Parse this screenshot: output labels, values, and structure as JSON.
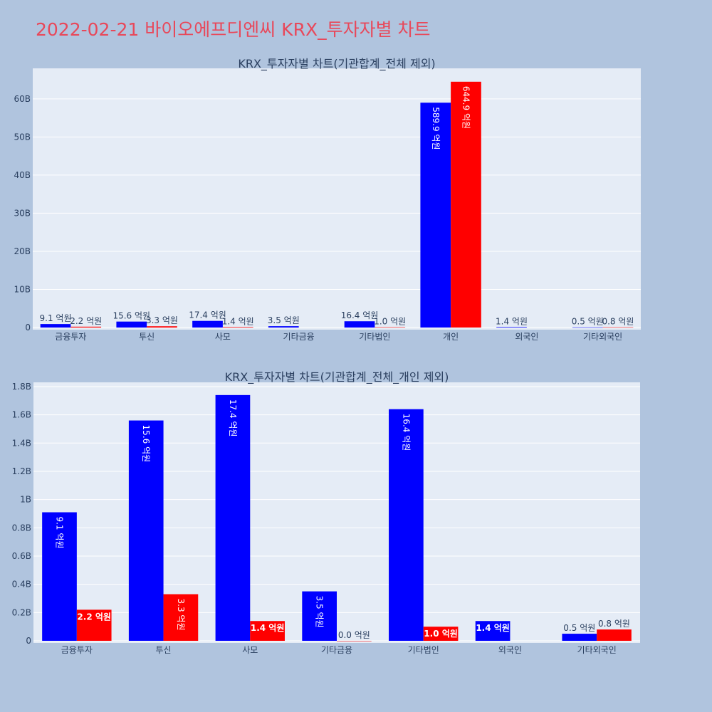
{
  "page": {
    "title": "2022-02-21 바이오에프디엔씨 KRX_투자자별 차트"
  },
  "colors": {
    "series_a": "#0000ff",
    "series_b": "#ff0000",
    "plot_bg": "#e5ecf6",
    "paper_bg": "#b0c4de",
    "title": "#e8485a"
  },
  "chart_data": [
    {
      "type": "bar",
      "title": "KRX_투자자별 차트(기관합계_전체 제외)",
      "categories": [
        "금융투자",
        "투신",
        "사모",
        "기타금융",
        "기타법인",
        "개인",
        "외국인",
        "기타외국인"
      ],
      "yticks": [
        "0",
        "10B",
        "20B",
        "30B",
        "40B",
        "50B",
        "60B"
      ],
      "ylim": [
        0,
        68000000000
      ],
      "series": [
        {
          "values": [
            910000000,
            1560000000,
            1740000000,
            350000000,
            1640000000,
            58990000000,
            140000000,
            50000000
          ],
          "labels": [
            "9.1 억원",
            "15.6 억원",
            "17.4 억원",
            "3.5 억원",
            "16.4 억원",
            "589.9 억원",
            "1.4 억원",
            "0.5 억원"
          ]
        },
        {
          "values": [
            220000000,
            330000000,
            140000000,
            null,
            100000000,
            64490000000,
            null,
            80000000
          ],
          "labels": [
            "2.2 억원",
            "3.3 억원",
            "1.4 억원",
            null,
            "1.0 억원",
            "644.9 억원",
            null,
            "0.8 억원"
          ]
        }
      ]
    },
    {
      "type": "bar",
      "title": "KRX_투자자별 차트(기관합계_전체_개인 제외)",
      "categories": [
        "금융투자",
        "투신",
        "사모",
        "기타금융",
        "기타법인",
        "외국인",
        "기타외국인"
      ],
      "yticks": [
        "0",
        "0.2B",
        "0.4B",
        "0.6B",
        "0.8B",
        "1B",
        "1.2B",
        "1.4B",
        "1.6B",
        "1.8B"
      ],
      "ylim": [
        0,
        1830000000
      ],
      "series": [
        {
          "values": [
            910000000,
            1560000000,
            1740000000,
            350000000,
            1640000000,
            140000000,
            50000000
          ],
          "labels": [
            "9.1 억원",
            "15.6 억원",
            "17.4 억원",
            "3.5 억원",
            "16.4 억원",
            "1.4 억원",
            "0.5 억원"
          ]
        },
        {
          "values": [
            220000000,
            330000000,
            140000000,
            0,
            100000000,
            null,
            80000000
          ],
          "labels": [
            "2.2 억원",
            "3.3 억원",
            "1.4 억원",
            "0.0 억원",
            "1.0 억원",
            null,
            "0.8 억원"
          ]
        }
      ]
    }
  ]
}
